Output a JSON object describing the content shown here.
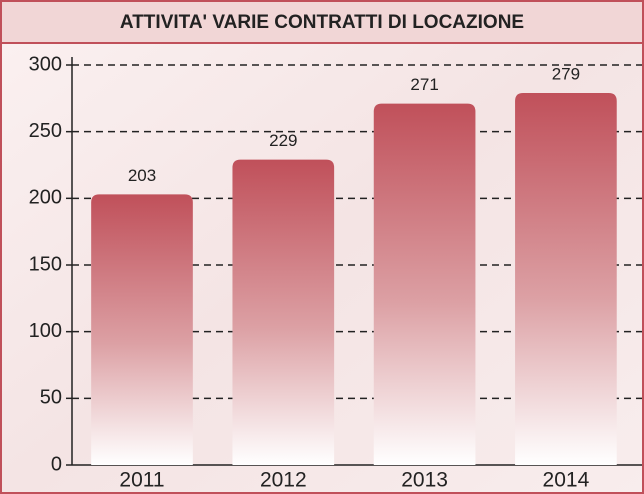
{
  "chart_data": {
    "type": "bar",
    "title": "ATTIVITA' VARIE CONTRATTI DI LOCAZIONE",
    "categories": [
      "2011",
      "2012",
      "2013",
      "2014"
    ],
    "values": [
      203,
      229,
      271,
      279
    ],
    "color": "#c0505a",
    "ylim": [
      0,
      300
    ],
    "yticks": [
      0,
      50,
      100,
      150,
      200,
      250,
      300
    ],
    "grid": true
  }
}
